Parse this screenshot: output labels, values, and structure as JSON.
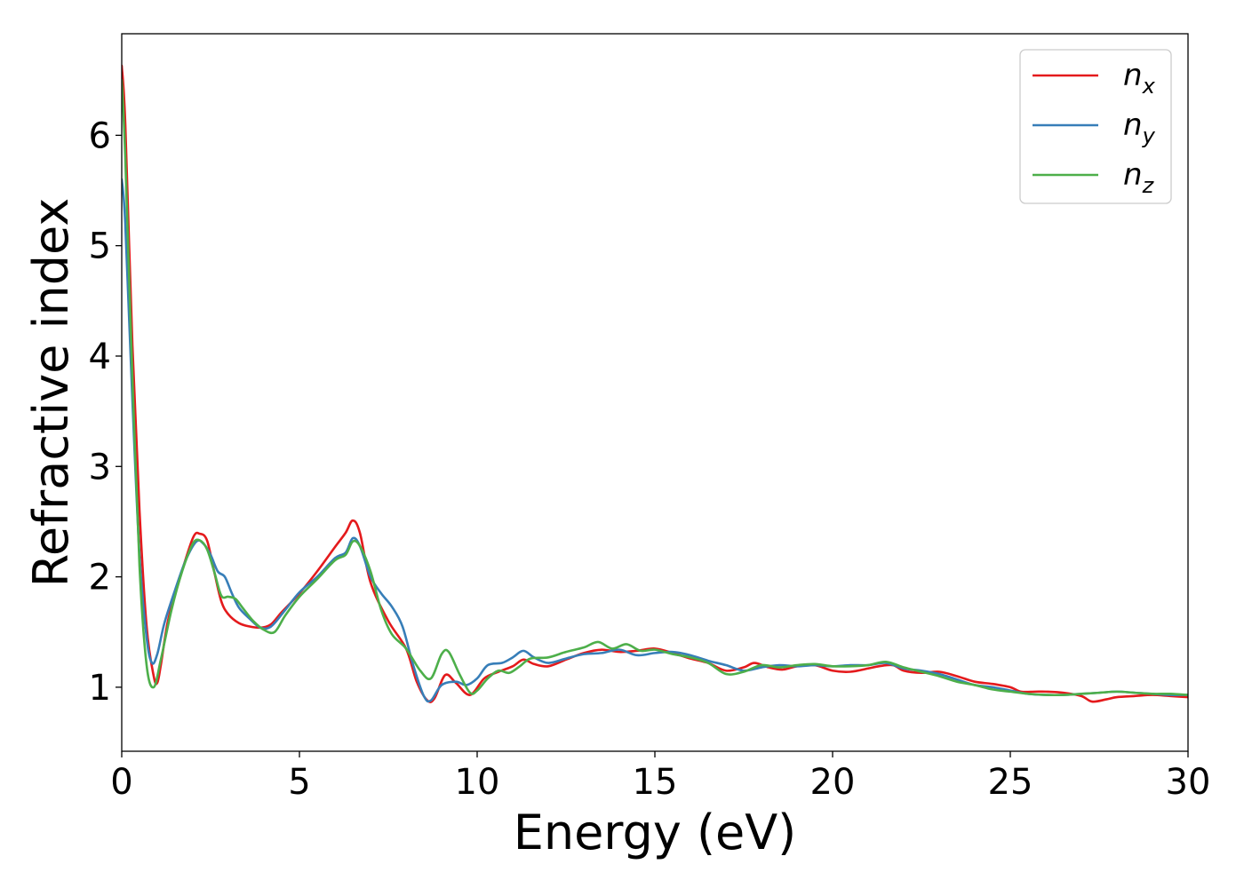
{
  "chart_data": {
    "type": "line",
    "xlabel": "Energy (eV)",
    "ylabel": "Refractive index",
    "xlim": [
      0,
      30
    ],
    "ylim": [
      0.42,
      6.92
    ],
    "xticks": [
      "0",
      "5",
      "10",
      "15",
      "20",
      "25",
      "30"
    ],
    "yticks": [
      "1",
      "2",
      "3",
      "4",
      "5",
      "6"
    ],
    "grid": false,
    "legend_position": "top-right",
    "series": [
      {
        "name": "n_x",
        "label_base": "n",
        "label_sub": "x",
        "color": "#e41a1c",
        "x": [
          0,
          0.1,
          0.3,
          0.5,
          0.7,
          0.9,
          1.0,
          1.1,
          1.3,
          1.6,
          2.0,
          2.2,
          2.4,
          2.6,
          2.8,
          3.0,
          3.3,
          3.6,
          3.9,
          4.2,
          4.5,
          5.0,
          5.5,
          6.0,
          6.3,
          6.5,
          6.7,
          7.0,
          7.5,
          8.0,
          8.3,
          8.6,
          8.8,
          9.1,
          9.4,
          9.8,
          10.2,
          10.6,
          11.0,
          11.3,
          11.6,
          12.0,
          12.5,
          13.0,
          13.5,
          14.0,
          14.5,
          15.0,
          15.5,
          16.0,
          16.5,
          17.0,
          17.5,
          17.8,
          18.2,
          18.6,
          19.0,
          19.5,
          20.0,
          20.5,
          21.0,
          21.3,
          21.7,
          22.0,
          22.5,
          23.0,
          23.5,
          24.0,
          24.5,
          25.0,
          25.3,
          25.7,
          26.0,
          26.5,
          27.0,
          27.3,
          27.7,
          28.0,
          28.5,
          29.0,
          29.5,
          30.0
        ],
        "y": [
          6.63,
          6.1,
          4.1,
          2.6,
          1.55,
          1.1,
          1.04,
          1.2,
          1.6,
          1.95,
          2.35,
          2.39,
          2.33,
          2.05,
          1.78,
          1.66,
          1.58,
          1.55,
          1.54,
          1.57,
          1.68,
          1.85,
          2.05,
          2.27,
          2.4,
          2.51,
          2.4,
          1.95,
          1.6,
          1.35,
          1.05,
          0.88,
          0.9,
          1.11,
          1.04,
          0.93,
          1.08,
          1.14,
          1.19,
          1.25,
          1.21,
          1.19,
          1.25,
          1.31,
          1.34,
          1.32,
          1.33,
          1.35,
          1.31,
          1.26,
          1.22,
          1.15,
          1.18,
          1.22,
          1.18,
          1.16,
          1.19,
          1.2,
          1.15,
          1.14,
          1.17,
          1.19,
          1.2,
          1.15,
          1.13,
          1.14,
          1.1,
          1.05,
          1.03,
          1.0,
          0.96,
          0.96,
          0.96,
          0.95,
          0.92,
          0.87,
          0.89,
          0.91,
          0.92,
          0.93,
          0.92,
          0.91
        ]
      },
      {
        "name": "n_y",
        "label_base": "n",
        "label_sub": "y",
        "color": "#377eb8",
        "x": [
          0,
          0.1,
          0.3,
          0.5,
          0.7,
          0.85,
          1.0,
          1.2,
          1.5,
          1.8,
          2.1,
          2.3,
          2.5,
          2.7,
          2.9,
          3.1,
          3.3,
          3.6,
          3.9,
          4.2,
          4.6,
          5.0,
          5.5,
          6.0,
          6.3,
          6.5,
          6.7,
          7.0,
          7.3,
          7.6,
          7.9,
          8.2,
          8.5,
          8.7,
          9.0,
          9.4,
          9.7,
          10.0,
          10.3,
          10.7,
          11.0,
          11.3,
          11.6,
          12.0,
          12.5,
          13.0,
          13.5,
          14.0,
          14.5,
          15.0,
          15.5,
          16.0,
          16.5,
          17.0,
          17.5,
          18.0,
          18.5,
          19.0,
          19.5,
          20.0,
          20.5,
          21.0,
          21.5,
          22.0,
          22.5,
          23.0,
          23.5,
          24.0,
          24.5,
          25.0,
          25.5,
          26.0,
          26.5,
          27.0,
          27.5,
          28.0,
          28.5,
          29.0,
          29.5,
          30.0
        ],
        "y": [
          5.6,
          5.2,
          3.6,
          2.2,
          1.45,
          1.22,
          1.3,
          1.58,
          1.88,
          2.15,
          2.32,
          2.3,
          2.2,
          2.05,
          2.0,
          1.85,
          1.72,
          1.62,
          1.54,
          1.55,
          1.7,
          1.86,
          2.0,
          2.17,
          2.22,
          2.35,
          2.28,
          2.0,
          1.85,
          1.73,
          1.55,
          1.2,
          0.92,
          0.88,
          1.02,
          1.05,
          1.02,
          1.08,
          1.2,
          1.22,
          1.27,
          1.33,
          1.27,
          1.22,
          1.26,
          1.3,
          1.31,
          1.34,
          1.29,
          1.31,
          1.32,
          1.29,
          1.24,
          1.2,
          1.15,
          1.18,
          1.2,
          1.19,
          1.2,
          1.19,
          1.2,
          1.2,
          1.22,
          1.17,
          1.15,
          1.12,
          1.07,
          1.02,
          1.0,
          0.97,
          0.94,
          0.93,
          0.93,
          0.94,
          0.95,
          0.96,
          0.95,
          0.94,
          0.93,
          0.93
        ]
      },
      {
        "name": "n_z",
        "label_base": "n",
        "label_sub": "z",
        "color": "#4daf4a",
        "x": [
          0,
          0.1,
          0.3,
          0.5,
          0.7,
          0.9,
          1.1,
          1.4,
          1.7,
          2.0,
          2.2,
          2.4,
          2.6,
          2.8,
          3.0,
          3.2,
          3.4,
          3.7,
          4.0,
          4.3,
          4.6,
          5.0,
          5.5,
          6.0,
          6.3,
          6.5,
          6.7,
          7.0,
          7.3,
          7.6,
          8.0,
          8.4,
          8.7,
          9.0,
          9.2,
          9.5,
          9.8,
          10.0,
          10.3,
          10.6,
          10.9,
          11.2,
          11.5,
          12.0,
          12.5,
          13.0,
          13.4,
          13.8,
          14.2,
          14.6,
          15.0,
          15.5,
          16.0,
          16.5,
          17.0,
          17.5,
          18.0,
          18.5,
          19.0,
          19.5,
          20.0,
          20.5,
          21.0,
          21.5,
          22.0,
          22.5,
          23.0,
          23.5,
          24.0,
          24.5,
          25.0,
          25.5,
          26.0,
          26.5,
          27.0,
          27.5,
          28.0,
          28.5,
          29.0,
          29.5,
          30.0
        ],
        "y": [
          6.5,
          5.8,
          3.8,
          2.1,
          1.2,
          1.0,
          1.25,
          1.7,
          2.05,
          2.3,
          2.33,
          2.25,
          2.05,
          1.83,
          1.82,
          1.8,
          1.72,
          1.6,
          1.52,
          1.5,
          1.65,
          1.82,
          1.98,
          2.15,
          2.2,
          2.32,
          2.28,
          2.05,
          1.7,
          1.48,
          1.35,
          1.15,
          1.08,
          1.3,
          1.32,
          1.12,
          0.95,
          0.97,
          1.08,
          1.15,
          1.13,
          1.19,
          1.26,
          1.27,
          1.32,
          1.36,
          1.41,
          1.35,
          1.39,
          1.33,
          1.34,
          1.3,
          1.27,
          1.22,
          1.12,
          1.14,
          1.2,
          1.18,
          1.2,
          1.21,
          1.19,
          1.19,
          1.2,
          1.23,
          1.18,
          1.14,
          1.1,
          1.05,
          1.02,
          0.98,
          0.96,
          0.94,
          0.93,
          0.93,
          0.94,
          0.95,
          0.96,
          0.95,
          0.94,
          0.94,
          0.93
        ]
      }
    ]
  }
}
